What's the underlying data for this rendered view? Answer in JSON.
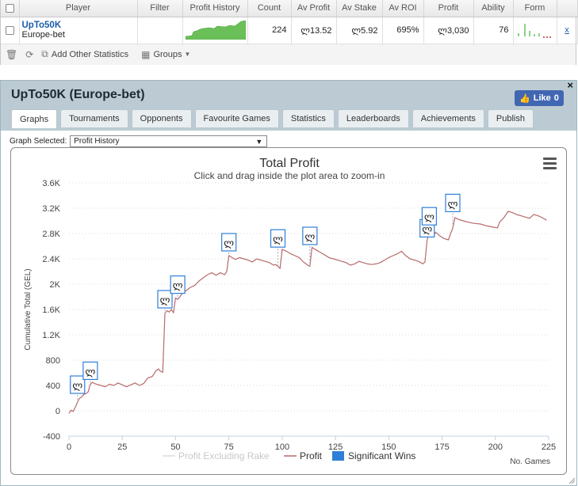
{
  "grid": {
    "columns": [
      "",
      "Player",
      "Filter",
      "Profit History",
      "Count",
      "Av Profit",
      "Av Stake",
      "Av ROI",
      "Profit",
      "Ability",
      "Form",
      ""
    ],
    "row": {
      "name": "UpTo50K",
      "site": "Europe-bet",
      "count": "224",
      "av_profit": "ლ13.52",
      "av_stake": "ლ5.92",
      "av_roi": "695%",
      "profit": "ლ3,030",
      "ability": "76",
      "remove": "x"
    },
    "toolbar": {
      "add_label": "Add Other Statistics",
      "groups_label": "Groups"
    }
  },
  "panel": {
    "title": "UpTo50K (Europe-bet)",
    "like_label": "Like",
    "like_count": "0",
    "close": "×",
    "tabs": [
      "Graphs",
      "Tournaments",
      "Opponents",
      "Favourite Games",
      "Statistics",
      "Leaderboards",
      "Achievements",
      "Publish"
    ],
    "active_tab": 0,
    "graph_selected_label": "Graph Selected:",
    "graph_selected_value": "Profit History"
  },
  "chart_data": {
    "type": "line",
    "title": "Total Profit",
    "subtitle": "Click and drag inside the plot area to zoom-in",
    "xlabel": "No. Games",
    "ylabel": "Cumulative Total (GEL)",
    "xlim": [
      0,
      225
    ],
    "ylim": [
      -400,
      3600
    ],
    "xticks": [
      0,
      25,
      50,
      75,
      100,
      125,
      150,
      175,
      200,
      225
    ],
    "yticks": [
      -400,
      0,
      400,
      800,
      1200,
      1600,
      2000,
      2400,
      2800,
      3200,
      3600
    ],
    "ytick_labels": [
      "-400",
      "0",
      "400",
      "800",
      "1.2K",
      "1.6K",
      "2K",
      "2.4K",
      "2.8K",
      "3.2K",
      "3.6K"
    ],
    "legend": [
      "Profit Excluding Rake",
      "Profit",
      "Significant Wins"
    ],
    "legend_position": "bottom",
    "colors": {
      "profit": "#b86a6a",
      "excl_rake": "#dcdcdc",
      "flag": "#2f7fd8"
    },
    "series": [
      {
        "name": "Profit",
        "x": [
          0,
          1,
          2,
          3,
          4,
          5,
          6,
          7,
          8,
          9,
          10,
          11,
          12,
          13,
          15,
          17,
          19,
          21,
          23,
          25,
          27,
          29,
          31,
          33,
          35,
          37,
          39,
          41,
          42,
          43,
          44,
          45,
          46,
          47,
          48,
          49,
          50,
          51,
          52,
          53,
          55,
          57,
          59,
          61,
          63,
          65,
          67,
          69,
          71,
          73,
          74,
          75,
          76,
          78,
          80,
          82,
          84,
          86,
          88,
          90,
          92,
          94,
          96,
          97,
          98,
          99,
          100,
          102,
          104,
          106,
          108,
          110,
          112,
          113,
          114,
          116,
          118,
          120,
          122,
          124,
          126,
          128,
          130,
          132,
          134,
          136,
          138,
          140,
          142,
          144,
          146,
          148,
          150,
          152,
          154,
          156,
          158,
          160,
          162,
          164,
          166,
          167,
          168,
          169,
          170,
          171,
          172,
          174,
          176,
          178,
          179,
          180,
          181,
          183,
          185,
          187,
          190,
          193,
          196,
          199,
          201,
          202,
          204,
          206,
          208,
          210,
          212,
          214,
          216,
          218,
          220,
          222,
          224
        ],
        "y": [
          -40,
          10,
          -10,
          60,
          140,
          200,
          220,
          260,
          270,
          300,
          420,
          450,
          430,
          420,
          400,
          380,
          420,
          400,
          440,
          410,
          380,
          410,
          440,
          400,
          430,
          520,
          540,
          640,
          660,
          620,
          610,
          1540,
          1580,
          1560,
          1600,
          1550,
          1780,
          1760,
          1800,
          1850,
          1900,
          1950,
          1980,
          2050,
          2100,
          2150,
          2180,
          2140,
          2180,
          2150,
          2200,
          2450,
          2430,
          2390,
          2420,
          2400,
          2380,
          2350,
          2400,
          2380,
          2360,
          2340,
          2300,
          2310,
          2280,
          2250,
          2550,
          2520,
          2480,
          2450,
          2420,
          2350,
          2300,
          2280,
          2580,
          2540,
          2500,
          2460,
          2420,
          2400,
          2380,
          2360,
          2340,
          2300,
          2320,
          2360,
          2340,
          2320,
          2310,
          2320,
          2340,
          2380,
          2420,
          2450,
          2480,
          2520,
          2450,
          2400,
          2380,
          2360,
          2320,
          2350,
          2700,
          2800,
          2780,
          2760,
          2820,
          2760,
          2720,
          2700,
          2800,
          2880,
          3050,
          3020,
          3000,
          2980,
          2960,
          2950,
          2920,
          2900,
          2890,
          2980,
          3050,
          3150,
          3130,
          3100,
          3080,
          3060,
          3040,
          3100,
          3080,
          3050,
          3010
        ]
      }
    ],
    "significant_wins": [
      {
        "x": 4,
        "y": 400
      },
      {
        "x": 10,
        "y": 620
      },
      {
        "x": 45,
        "y": 1750
      },
      {
        "x": 51,
        "y": 1980
      },
      {
        "x": 75,
        "y": 2650
      },
      {
        "x": 98,
        "y": 2710
      },
      {
        "x": 113,
        "y": 2750
      },
      {
        "x": 168,
        "y": 2870
      },
      {
        "x": 169,
        "y": 3060
      },
      {
        "x": 180,
        "y": 3270
      }
    ],
    "flag_label": "ლ"
  }
}
